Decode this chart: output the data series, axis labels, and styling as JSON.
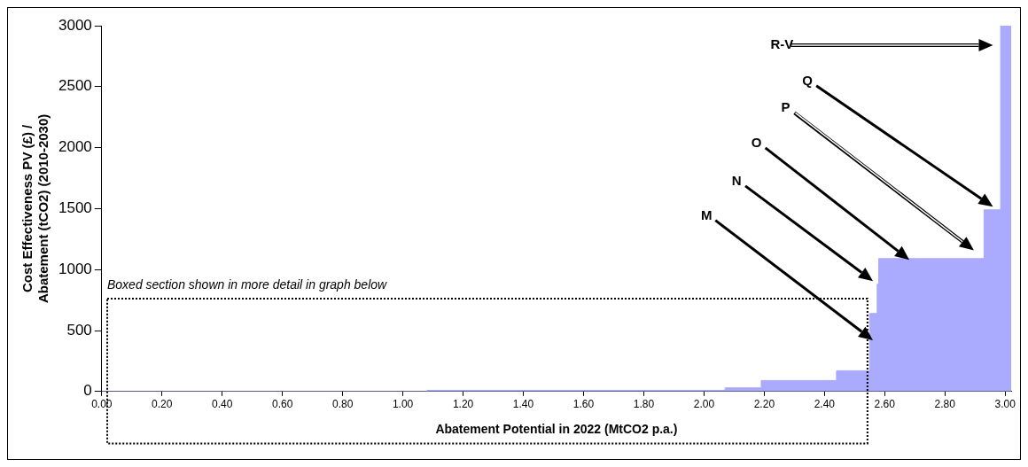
{
  "chart_data": {
    "type": "area",
    "xlabel": "Abatement Potential in 2022 (MtCO2 p.a.)",
    "ylabel": "Cost Effectiveness PV (£) / Abatement (tCO2) (2010-2030)",
    "series": [
      {
        "color": "#aaaaff",
        "x": [
          0,
          1.08,
          1.08,
          2.07,
          2.07,
          2.19,
          2.19,
          2.44,
          2.44,
          2.55,
          2.55,
          2.575,
          2.575,
          2.58,
          2.58,
          2.93,
          2.93,
          2.985,
          2.985,
          3.02
        ],
        "values": [
          0,
          0,
          10,
          10,
          30,
          30,
          90,
          90,
          170,
          170,
          640,
          640,
          880,
          880,
          1090,
          1090,
          1490,
          1490,
          3000,
          3000
        ]
      }
    ],
    "xlim": [
      0,
      3.02
    ],
    "xticks": [
      {
        "value": 0,
        "label": "0.00"
      },
      {
        "value": 0.2,
        "label": "0.20"
      },
      {
        "value": 0.4,
        "label": "0.40"
      },
      {
        "value": 0.6,
        "label": "0.60"
      },
      {
        "value": 0.8,
        "label": "0.80"
      },
      {
        "value": 1,
        "label": "1.00"
      },
      {
        "value": 1.2,
        "label": "1.20"
      },
      {
        "value": 1.4,
        "label": "1.40"
      },
      {
        "value": 1.6,
        "label": "1.60"
      },
      {
        "value": 1.8,
        "label": "1.80"
      },
      {
        "value": 2,
        "label": "2.00"
      },
      {
        "value": 2.2,
        "label": "2.20"
      },
      {
        "value": 2.4,
        "label": "2.40"
      },
      {
        "value": 2.6,
        "label": "2.60"
      },
      {
        "value": 2.8,
        "label": "2.80"
      },
      {
        "value": 3,
        "label": "3.00"
      }
    ],
    "ylim": [
      0,
      3000
    ],
    "yticks": [
      0,
      500,
      1000,
      1500,
      2000,
      2500,
      3000
    ],
    "grid": false,
    "legend": false,
    "annotations": [
      "Boxed section shown in more detail in graph below",
      "M",
      "N",
      "O",
      "P",
      "Q",
      "R-V"
    ]
  }
}
